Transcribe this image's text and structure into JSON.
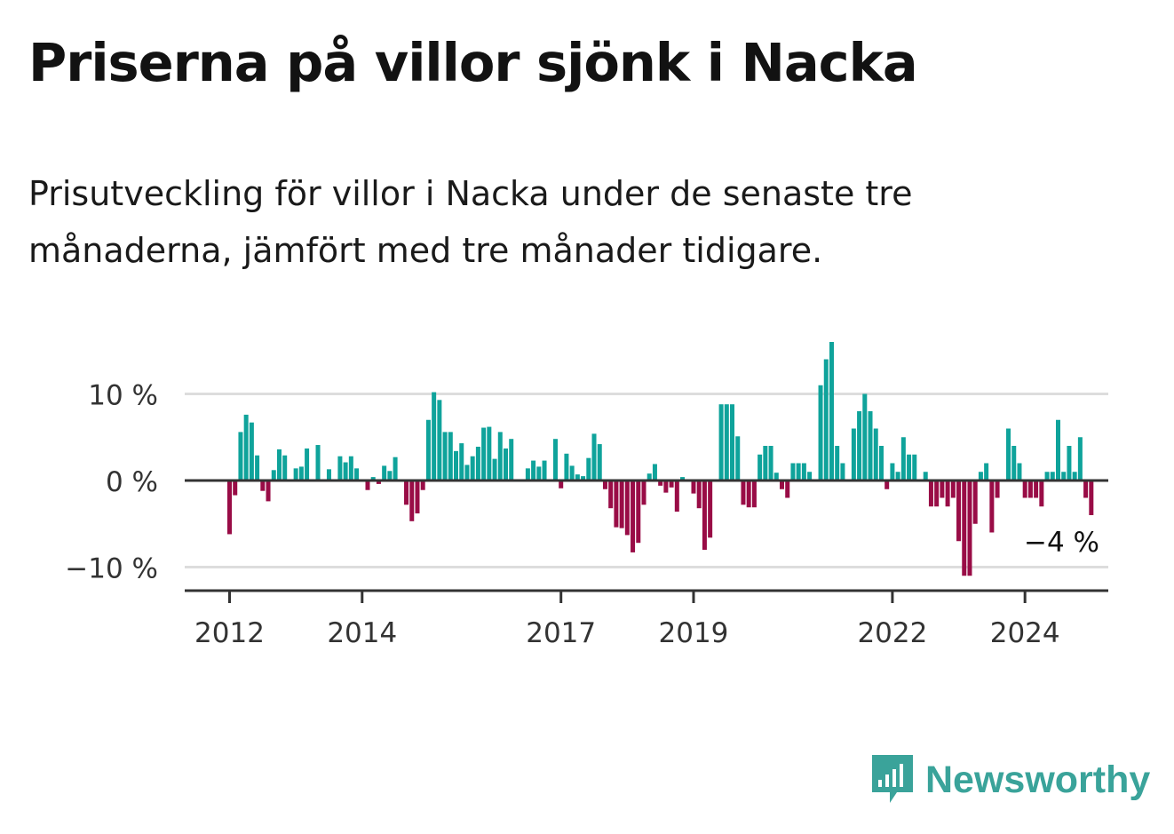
{
  "header": {
    "title": "Priserna på villor sjönk i Nacka",
    "subtitle": "Prisutveckling för villor i Nacka under de senaste tre månaderna, jämfört med tre månader tidigare."
  },
  "logo": {
    "icon": "newsworthy-chat-bars-icon",
    "text": "Newsworthy"
  },
  "colors": {
    "positive": "#0fa39b",
    "negative": "#990c46",
    "axis": "#333333",
    "grid": "#dddddd",
    "logo": "#3aa39a"
  },
  "chart_data": {
    "type": "bar",
    "title": "Priserna på villor sjönk i Nacka",
    "xlabel": "",
    "ylabel": "",
    "unit": "%",
    "ylim": [
      -12.5,
      16
    ],
    "grid": true,
    "start": "2012-01",
    "y_ticks": [
      {
        "value": 10,
        "label": "10 %"
      },
      {
        "value": 0,
        "label": "0 %"
      },
      {
        "value": -10,
        "label": "−10 %"
      }
    ],
    "x_ticks": [
      {
        "month_index": 0,
        "label": "2012"
      },
      {
        "month_index": 24,
        "label": "2014"
      },
      {
        "month_index": 60,
        "label": "2017"
      },
      {
        "month_index": 84,
        "label": "2019"
      },
      {
        "month_index": 120,
        "label": "2022"
      },
      {
        "month_index": 144,
        "label": "2024"
      }
    ],
    "annotation": {
      "text": "−4 %",
      "value": -4
    },
    "values": [
      -6.2,
      -1.7,
      5.6,
      7.6,
      6.7,
      2.9,
      -1.2,
      -2.4,
      1.2,
      3.6,
      2.9,
      null,
      1.4,
      1.6,
      3.7,
      null,
      4.1,
      null,
      1.3,
      null,
      2.8,
      2.1,
      2.8,
      1.4,
      null,
      -1.1,
      0.4,
      -0.4,
      1.7,
      1.1,
      2.7,
      null,
      -2.8,
      -4.7,
      -3.8,
      -1.1,
      7.0,
      10.2,
      9.3,
      5.6,
      5.6,
      3.4,
      4.3,
      1.8,
      2.8,
      3.9,
      6.1,
      6.2,
      2.5,
      5.6,
      3.7,
      4.8,
      null,
      null,
      1.4,
      2.3,
      1.6,
      2.3,
      null,
      4.8,
      -0.9,
      3.1,
      1.7,
      0.7,
      0.5,
      2.6,
      5.4,
      4.2,
      -1.0,
      -3.2,
      -5.4,
      -5.5,
      -6.3,
      -8.3,
      -7.2,
      -2.8,
      0.8,
      1.9,
      -0.6,
      -1.4,
      -0.8,
      -3.6,
      0.4,
      -0.1,
      -1.5,
      -3.2,
      -8.0,
      -6.6,
      null,
      8.8,
      8.8,
      8.8,
      5.1,
      -2.8,
      -3.1,
      -3.1,
      3.0,
      4.0,
      4.0,
      0.9,
      -1.0,
      -2.0,
      2.0,
      2.0,
      2.0,
      1.0,
      null,
      11.0,
      14.0,
      16.0,
      4.0,
      2.0,
      null,
      6.0,
      8.0,
      10.0,
      8.0,
      6.0,
      4.0,
      -1.0,
      2.0,
      1.0,
      5.0,
      3.0,
      3.0,
      null,
      1.0,
      -3.0,
      -3.0,
      -2.0,
      -3.0,
      -2.0,
      -7.0,
      -11.0,
      -11.0,
      -5.0,
      1.0,
      2.0,
      -6.0,
      -2.0,
      null,
      6.0,
      4.0,
      2.0,
      -2.0,
      -2.0,
      -2.0,
      -3.0,
      1.0,
      1.0,
      7.0,
      1.0,
      4.0,
      1.0,
      5.0,
      -2.0,
      -4.0
    ]
  }
}
